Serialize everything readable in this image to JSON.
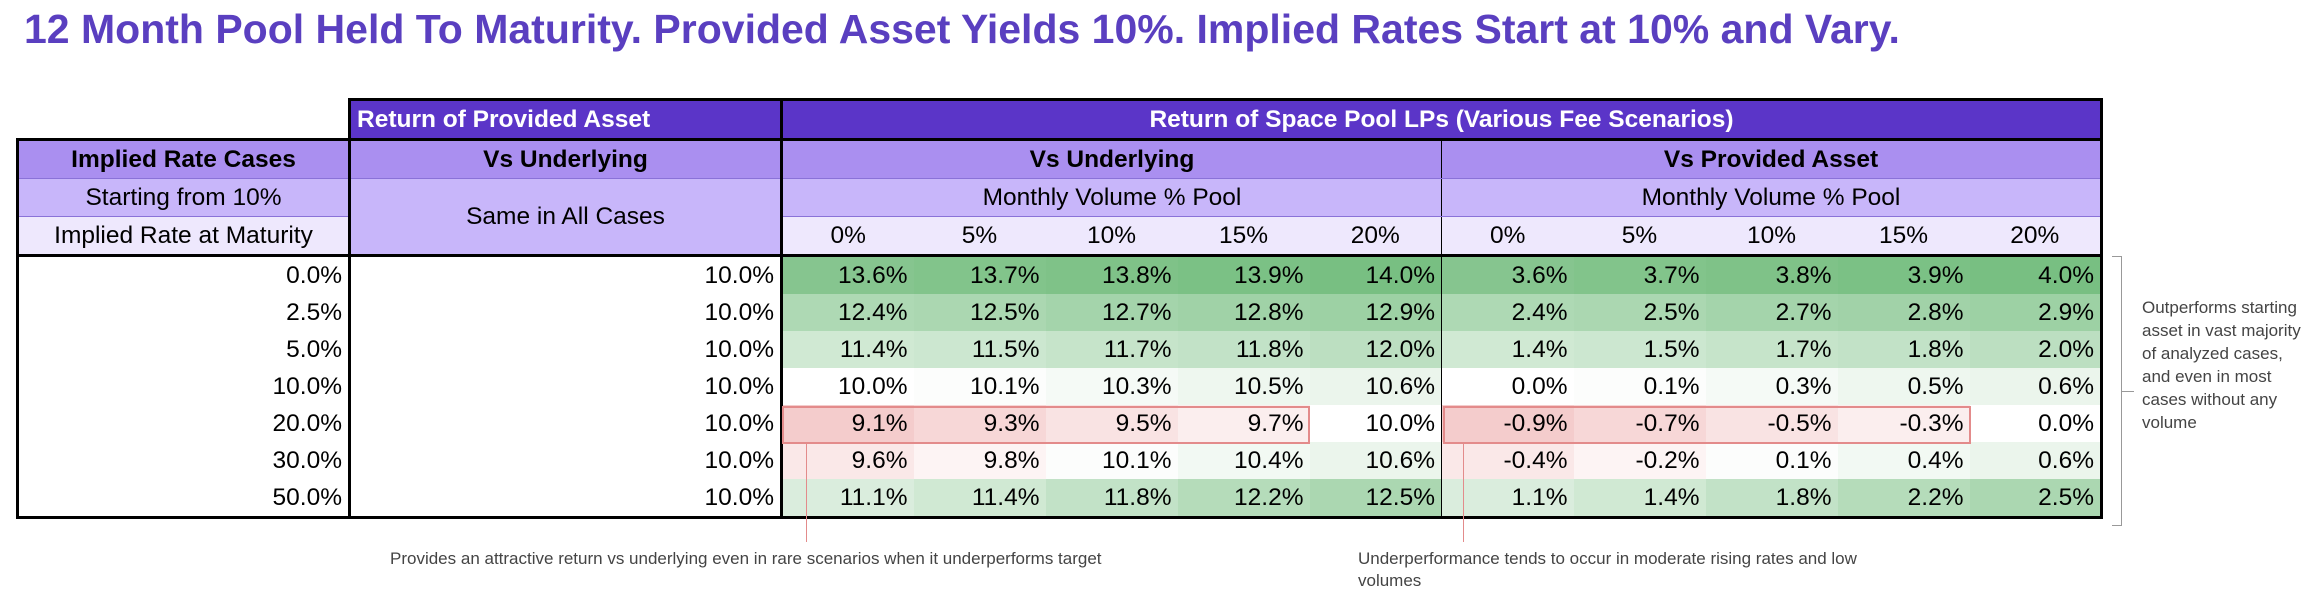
{
  "title": "12 Month Pool Held To Maturity.  Provided Asset Yields 10%.  Implied Rates Start at 10% and Vary.",
  "header": {
    "provided_asset": "Return of Provided Asset",
    "space_pool": "Return of Space Pool LPs (Various Fee Scenarios)",
    "implied_rate_cases": "Implied Rate Cases",
    "vs_underlying_left": "Vs Underlying",
    "vs_underlying": "Vs Underlying",
    "vs_provided": "Vs Provided Asset",
    "starting_from": "Starting from 10%",
    "same_in_all": "Same in All Cases",
    "monthly_volume_1": "Monthly Volume % Pool",
    "monthly_volume_2": "Monthly Volume % Pool",
    "implied_at_maturity": "Implied Rate at Maturity",
    "volumes_1": [
      "0%",
      "5%",
      "10%",
      "15%",
      "20%"
    ],
    "volumes_2": [
      "0%",
      "5%",
      "10%",
      "15%",
      "20%"
    ]
  },
  "rows": [
    {
      "rate": "0.0%",
      "provided": "10.0%",
      "vs_underlying": [
        "13.6%",
        "13.7%",
        "13.8%",
        "13.9%",
        "14.0%"
      ],
      "vs_provided": [
        "3.6%",
        "3.7%",
        "3.8%",
        "3.9%",
        "4.0%"
      ]
    },
    {
      "rate": "2.5%",
      "provided": "10.0%",
      "vs_underlying": [
        "12.4%",
        "12.5%",
        "12.7%",
        "12.8%",
        "12.9%"
      ],
      "vs_provided": [
        "2.4%",
        "2.5%",
        "2.7%",
        "2.8%",
        "2.9%"
      ]
    },
    {
      "rate": "5.0%",
      "provided": "10.0%",
      "vs_underlying": [
        "11.4%",
        "11.5%",
        "11.7%",
        "11.8%",
        "12.0%"
      ],
      "vs_provided": [
        "1.4%",
        "1.5%",
        "1.7%",
        "1.8%",
        "2.0%"
      ]
    },
    {
      "rate": "10.0%",
      "provided": "10.0%",
      "vs_underlying": [
        "10.0%",
        "10.1%",
        "10.3%",
        "10.5%",
        "10.6%"
      ],
      "vs_provided": [
        "0.0%",
        "0.1%",
        "0.3%",
        "0.5%",
        "0.6%"
      ]
    },
    {
      "rate": "20.0%",
      "provided": "10.0%",
      "vs_underlying": [
        "9.1%",
        "9.3%",
        "9.5%",
        "9.7%",
        "10.0%"
      ],
      "vs_provided": [
        "-0.9%",
        "-0.7%",
        "-0.5%",
        "-0.3%",
        "0.0%"
      ]
    },
    {
      "rate": "30.0%",
      "provided": "10.0%",
      "vs_underlying": [
        "9.6%",
        "9.8%",
        "10.1%",
        "10.4%",
        "10.6%"
      ],
      "vs_provided": [
        "-0.4%",
        "-0.2%",
        "0.1%",
        "0.4%",
        "0.6%"
      ]
    },
    {
      "rate": "50.0%",
      "provided": "10.0%",
      "vs_underlying": [
        "11.1%",
        "11.4%",
        "11.8%",
        "12.2%",
        "12.5%"
      ],
      "vs_provided": [
        "1.1%",
        "1.4%",
        "1.8%",
        "2.2%",
        "2.5%"
      ]
    }
  ],
  "colors": {
    "title": "#5a3fc0",
    "header_dark": "#5b35c8",
    "header_mid": "#aa8ff0",
    "header_light": "#c8b6fa",
    "header_pale": "#eee8fd",
    "positive_max": "#78bf82",
    "negative_max": "#f3c6c6",
    "annotation_line": "#e38b8b"
  },
  "notes": {
    "left": "Provides an attractive return vs underlying even in rare scenarios when it underperforms target",
    "middle": "Underperformance tends to occur in moderate rising rates and low volumes",
    "right": "Outperforms starting asset in vast majority of analyzed cases, and even in most cases without any volume"
  }
}
